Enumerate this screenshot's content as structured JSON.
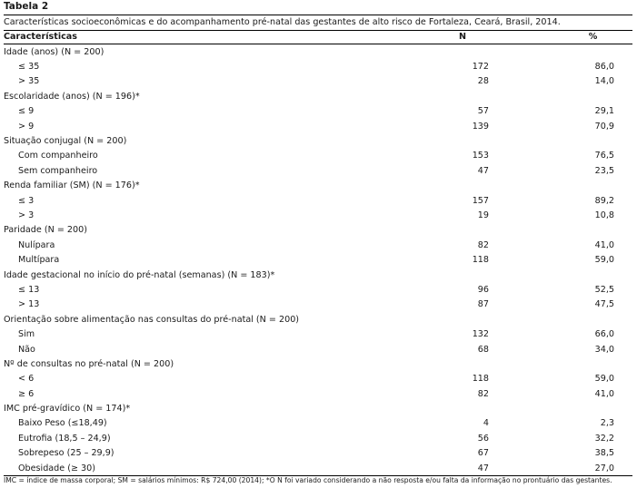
{
  "title": "Tabela 2",
  "caption": "Características socioeconômicas e do acompanhamento pré-natal das gestantes de alto risco de Fortaleza, Ceará, Brasil, 2014.",
  "headers": [
    "Características",
    "N",
    "%"
  ],
  "rows": [
    {
      "type": "group",
      "label": "Idade (anos) (N = 200)",
      "n": "",
      "pct": ""
    },
    {
      "type": "item",
      "label": "≤ 35",
      "n": "172",
      "pct": "86,0"
    },
    {
      "type": "item",
      "label": "> 35",
      "n": "28",
      "pct": "14,0"
    },
    {
      "type": "group",
      "label": "Escolaridade (anos) (N = 196)*",
      "n": "",
      "pct": ""
    },
    {
      "type": "item",
      "label": "≤ 9",
      "n": "57",
      "pct": "29,1"
    },
    {
      "type": "item",
      "label": "> 9",
      "n": "139",
      "pct": "70,9"
    },
    {
      "type": "group",
      "label": "Situação conjugal (N = 200)",
      "n": "",
      "pct": ""
    },
    {
      "type": "item",
      "label": "Com companheiro",
      "n": "153",
      "pct": "76,5"
    },
    {
      "type": "item",
      "label": "Sem companheiro",
      "n": "47",
      "pct": "23,5"
    },
    {
      "type": "group",
      "label": "Renda familiar (SM) (N = 176)*",
      "n": "",
      "pct": ""
    },
    {
      "type": "item",
      "label": "≤ 3",
      "n": "157",
      "pct": "89,2"
    },
    {
      "type": "item",
      "label": "> 3",
      "n": "19",
      "pct": "10,8"
    },
    {
      "type": "group",
      "label": "Paridade (N = 200)",
      "n": "",
      "pct": ""
    },
    {
      "type": "item",
      "label": "Nulípara",
      "n": "82",
      "pct": "41,0"
    },
    {
      "type": "item",
      "label": "Multípara",
      "n": "118",
      "pct": "59,0"
    },
    {
      "type": "group",
      "label": "Idade gestacional no início do pré-natal (semanas) (N = 183)*",
      "n": "",
      "pct": ""
    },
    {
      "type": "item",
      "label": "≤ 13",
      "n": "96",
      "pct": "52,5"
    },
    {
      "type": "item",
      "label": "> 13",
      "n": "87",
      "pct": "47,5"
    },
    {
      "type": "group",
      "label": "Orientação sobre alimentação nas consultas do pré-natal (N = 200)",
      "n": "",
      "pct": ""
    },
    {
      "type": "item",
      "label": "Sim",
      "n": "132",
      "pct": "66,0"
    },
    {
      "type": "item",
      "label": "Não",
      "n": "68",
      "pct": "34,0"
    },
    {
      "type": "group",
      "label": "Nº de consultas no pré-natal (N = 200)",
      "n": "",
      "pct": ""
    },
    {
      "type": "item",
      "label": "< 6",
      "n": "118",
      "pct": "59,0"
    },
    {
      "type": "item",
      "label": "≥ 6",
      "n": "82",
      "pct": "41,0"
    },
    {
      "type": "group",
      "label": "IMC pré-gravídico (N = 174)*",
      "n": "",
      "pct": ""
    },
    {
      "type": "item",
      "label": "Baixo Peso (≤18,49)",
      "n": "4",
      "pct": "2,3"
    },
    {
      "type": "item",
      "label": "Eutrofia (18,5 – 24,9)",
      "n": "56",
      "pct": "32,2"
    },
    {
      "type": "item",
      "label": "Sobrepeso (25 – 29,9)",
      "n": "67",
      "pct": "38,5"
    },
    {
      "type": "item",
      "label": "Obesidade (≥ 30)",
      "n": "47",
      "pct": "27,0"
    }
  ],
  "footnote": "IMC = índice de massa corporal; SM = salários mínimos: R$ 724,00 (2014); *O N foi variado considerando a não resposta e/ou falta da informação no prontuário das gestantes."
}
